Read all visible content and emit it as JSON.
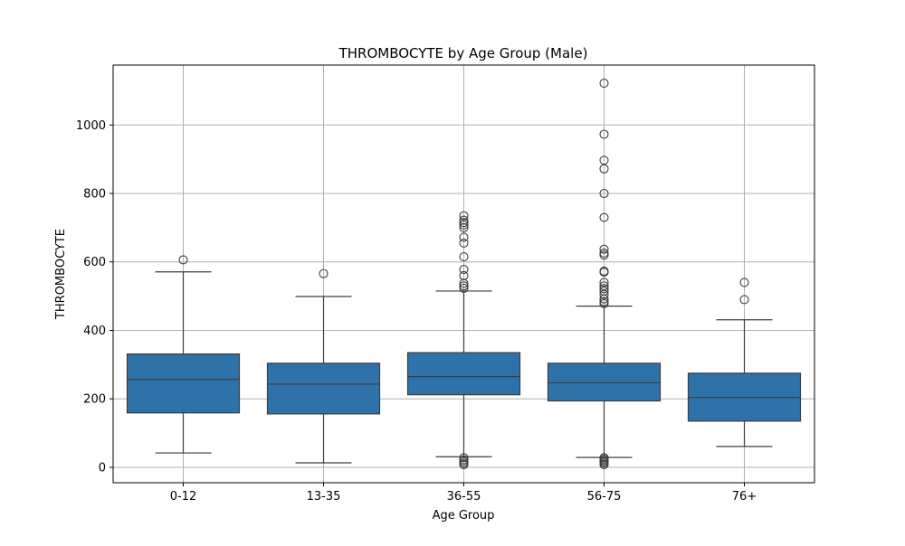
{
  "chart_data": {
    "type": "box",
    "title": "THROMBOCYTE by Age Group (Male)",
    "xlabel": "Age Group",
    "ylabel": "THROMBOCYTE",
    "ylim": [
      -45,
      1175
    ],
    "yticks": [
      0,
      200,
      400,
      600,
      800,
      1000
    ],
    "grid": true,
    "box_color": "#2f72aa",
    "line_color": "#3d3d3d",
    "grid_color": "#b0b0b0",
    "categories": [
      "0-12",
      "13-35",
      "36-55",
      "56-75",
      "76+"
    ],
    "boxes": [
      {
        "category": "0-12",
        "whisker_low": 42,
        "q1": 159,
        "median": 257,
        "q3": 331,
        "whisker_high": 571,
        "outliers": [
          606
        ]
      },
      {
        "category": "13-35",
        "whisker_low": 13,
        "q1": 156,
        "median": 243,
        "q3": 304,
        "whisker_high": 499,
        "outliers": [
          566
        ]
      },
      {
        "category": "36-55",
        "whisker_low": 31,
        "q1": 212,
        "median": 265,
        "q3": 335,
        "whisker_high": 515,
        "outliers": [
          8,
          12,
          17,
          22,
          28,
          523,
          530,
          537,
          560,
          578,
          615,
          655,
          672,
          700,
          708,
          715,
          722,
          735
        ]
      },
      {
        "category": "56-75",
        "whisker_low": 29,
        "q1": 194,
        "median": 247,
        "q3": 304,
        "whisker_high": 471,
        "outliers": [
          8,
          12,
          16,
          20,
          24,
          28,
          478,
          484,
          492,
          505,
          515,
          522,
          530,
          540,
          570,
          573,
          620,
          626,
          637,
          730,
          800,
          872,
          897,
          973,
          1122
        ]
      },
      {
        "category": "76+",
        "whisker_low": 61,
        "q1": 135,
        "median": 204,
        "q3": 275,
        "whisker_high": 431,
        "outliers": [
          490,
          540
        ]
      }
    ]
  }
}
